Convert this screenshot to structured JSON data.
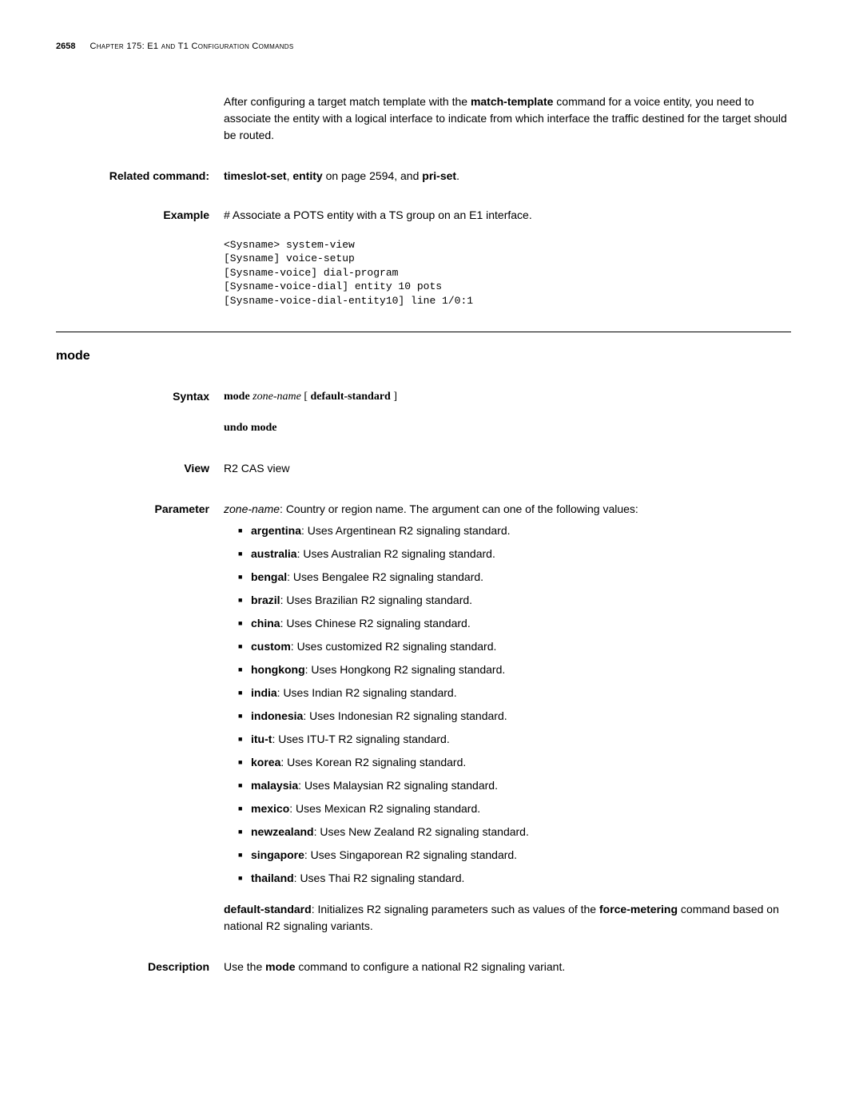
{
  "header": {
    "page_number": "2658",
    "chapter": "Chapter 175: E1 and T1 Configuration Commands"
  },
  "intro_paragraph": {
    "prefix": "After configuring a target match template with the ",
    "bold1": "match-template",
    "mid": " command for a voice entity, you need to associate the entity with a logical interface to indicate from which interface the traffic destined for the target should be routed."
  },
  "related": {
    "label": "Related command:",
    "part1": "timeslot-set",
    "sep1": ", ",
    "part2": "entity",
    "sep2": " on page 2594, and ",
    "part3": "pri-set",
    "tail": "."
  },
  "example": {
    "label": "Example",
    "desc": "# Associate a POTS entity with a TS group on an E1 interface.",
    "code": "<Sysname> system-view\n[Sysname] voice-setup\n[Sysname-voice] dial-program\n[Sysname-voice-dial] entity 10 pots\n[Sysname-voice-dial-entity10] line 1/0:1"
  },
  "section": {
    "title": "mode",
    "syntax": {
      "label": "Syntax",
      "line1_kw1": "mode",
      "line1_it": "zone-name",
      "line1_br1": " [ ",
      "line1_kw2": "default-standard",
      "line1_br2": " ]",
      "line2": "undo mode"
    },
    "view": {
      "label": "View",
      "text": "R2 CAS view"
    },
    "parameter": {
      "label": "Parameter",
      "intro_it": "zone-name",
      "intro_rest": ": Country or region name. The argument can one of the following values:",
      "items": [
        {
          "name": "argentina",
          "desc": ": Uses Argentinean R2 signaling standard."
        },
        {
          "name": "australia",
          "desc": ": Uses Australian R2 signaling standard."
        },
        {
          "name": "bengal",
          "desc": ": Uses Bengalee R2 signaling standard."
        },
        {
          "name": "brazil",
          "desc": ": Uses Brazilian R2 signaling standard."
        },
        {
          "name": "china",
          "desc": ": Uses Chinese R2 signaling standard."
        },
        {
          "name": "custom",
          "desc": ": Uses customized R2 signaling standard."
        },
        {
          "name": "hongkong",
          "desc": ": Uses Hongkong R2 signaling standard."
        },
        {
          "name": "india",
          "desc": ": Uses Indian R2 signaling standard."
        },
        {
          "name": "indonesia",
          "desc": ": Uses Indonesian R2 signaling standard."
        },
        {
          "name": "itu-t",
          "desc": ": Uses ITU-T R2 signaling standard."
        },
        {
          "name": "korea",
          "desc": ": Uses Korean R2 signaling standard."
        },
        {
          "name": "malaysia",
          "desc": ": Uses Malaysian R2 signaling standard."
        },
        {
          "name": "mexico",
          "desc": ": Uses Mexican R2 signaling standard."
        },
        {
          "name": "newzealand",
          "desc": ": Uses New Zealand R2 signaling standard."
        },
        {
          "name": "singapore",
          "desc": ": Uses Singaporean R2 signaling standard."
        },
        {
          "name": "thailand",
          "desc": ": Uses Thai R2 signaling standard."
        }
      ],
      "default_kw": "default-standard",
      "default_mid": ": Initializes R2 signaling parameters such as values of the ",
      "default_kw2": "force-metering",
      "default_rest": " command based on national R2 signaling variants."
    },
    "description": {
      "label": "Description",
      "pre": "Use the ",
      "kw": "mode",
      "post": " command to configure a national R2 signaling variant."
    }
  }
}
